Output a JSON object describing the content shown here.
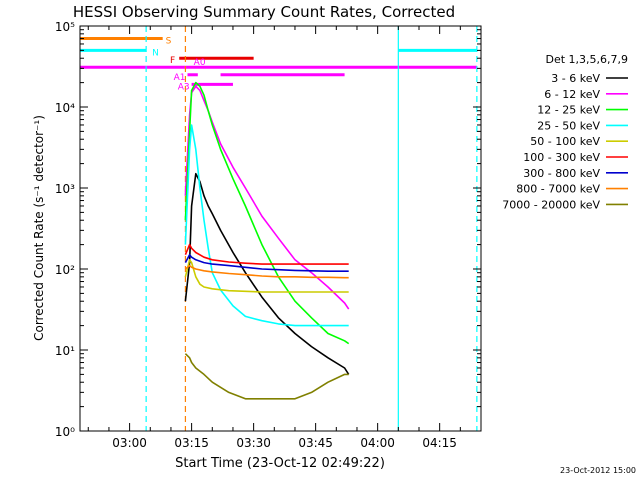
{
  "chart_data": {
    "type": "line",
    "title": "HESSI Observing Summary Count Rates, Corrected",
    "xlabel": "Start Time (23-Oct-12 02:49:22)",
    "ylabel": "Corrected Count Rate (s⁻¹ detector⁻¹)",
    "date_stamp": "23-Oct-2012 15:00",
    "y_scale": "log",
    "ylim": [
      1,
      100000
    ],
    "y_ticks": [
      1,
      10,
      100,
      1000,
      10000,
      100000
    ],
    "y_tick_labels": [
      "10⁰",
      "10¹",
      "10²",
      "10³",
      "10⁴",
      "10⁵"
    ],
    "x_unit": "minutes since 03:00 UT",
    "xlim": [
      -12.0,
      85.0
    ],
    "x_ticks": [
      0,
      15,
      30,
      45,
      60,
      75
    ],
    "x_tick_labels": [
      "03:00",
      "03:15",
      "03:30",
      "03:45",
      "04:00",
      "04:15"
    ],
    "legend_title": "Det 1,3,5,6,7,9",
    "legend_position": "right",
    "colors": {
      "flag_magenta": "#ff00ff",
      "flag_orange": "#ff8000",
      "flag_red": "#e80000",
      "flag_cyan": "#00ffff",
      "flag_marker": "#ff8000"
    },
    "flags": {
      "S": {
        "label": "S",
        "segments": [
          [
            -12.0,
            8.0
          ]
        ],
        "y": 70000
      },
      "N": {
        "label": "N",
        "segments": [
          [
            -12.0,
            4.0
          ],
          [
            65.0,
            84.0
          ]
        ],
        "y": 50000
      },
      "F": {
        "label": "F",
        "segments": [
          [
            12.0,
            30.0
          ]
        ],
        "y": 40000
      },
      "A0": {
        "label": "A0",
        "segments": [
          [
            -12.0,
            84.0
          ]
        ],
        "y": 31000
      },
      "A1": {
        "label": "A1",
        "segments": [
          [
            14.0,
            16.5
          ],
          [
            22.0,
            52.0
          ]
        ],
        "y": 25000
      },
      "A3": {
        "label": "A3",
        "segments": [
          [
            15.0,
            25.0
          ]
        ],
        "y": 19000
      }
    },
    "vlines": {
      "cyan_dashed": [
        4.0,
        84.0
      ],
      "cyan_solid": [
        65.0
      ],
      "orange_dashed": [
        13.5
      ]
    },
    "series": [
      {
        "name": "3 - 6 keV",
        "color": "#000000",
        "x": [
          13.5,
          14.5,
          15.0,
          16.0,
          17.0,
          18.0,
          19.0,
          20.0,
          22.0,
          25.0,
          28.0,
          32.0,
          36.0,
          40.0,
          44.0,
          48.0,
          52.0,
          53.0
        ],
        "y": [
          40,
          120,
          600,
          1500,
          1200,
          800,
          600,
          480,
          300,
          160,
          90,
          45,
          25,
          16,
          11,
          8,
          6,
          5
        ]
      },
      {
        "name": "6 - 12 keV",
        "color": "#ff00ff",
        "x": [
          13.5,
          14.5,
          15.0,
          16.0,
          17.0,
          18.0,
          19.0,
          20.0,
          22.0,
          25.0,
          28.0,
          32.0,
          36.0,
          40.0,
          44.0,
          48.0,
          52.0,
          53.0
        ],
        "y": [
          800,
          8000,
          15000,
          18000,
          16000,
          12000,
          9000,
          6500,
          3500,
          1800,
          1000,
          450,
          240,
          130,
          90,
          60,
          38,
          32
        ]
      },
      {
        "name": "12 - 25 keV",
        "color": "#00ff00",
        "x": [
          13.5,
          14.5,
          15.0,
          16.0,
          17.0,
          18.0,
          19.0,
          20.0,
          22.0,
          25.0,
          28.0,
          32.0,
          36.0,
          40.0,
          44.0,
          48.0,
          52.0,
          53.0
        ],
        "y": [
          400,
          5000,
          16000,
          20000,
          18000,
          14000,
          9000,
          6000,
          3000,
          1300,
          600,
          200,
          80,
          40,
          25,
          16,
          13,
          12
        ]
      },
      {
        "name": "25 - 50 keV",
        "color": "#00ffff",
        "x": [
          13.5,
          14.5,
          15.0,
          16.0,
          17.0,
          18.0,
          19.0,
          20.0,
          22.0,
          25.0,
          28.0,
          32.0,
          36.0,
          40.0,
          44.0,
          48.0,
          52.0,
          53.0
        ],
        "y": [
          200,
          3000,
          6000,
          3000,
          1000,
          400,
          180,
          90,
          55,
          35,
          26,
          23,
          21,
          20,
          20,
          20,
          20,
          20
        ]
      },
      {
        "name": "50 - 100 keV",
        "color": "#cccc00",
        "x": [
          13.5,
          14.5,
          15.0,
          16.0,
          17.0,
          18.0,
          20.0,
          24.0,
          28.0,
          32.0,
          36.0,
          40.0,
          44.0,
          48.0,
          52.0,
          53.0
        ],
        "y": [
          80,
          130,
          120,
          80,
          65,
          60,
          57,
          54,
          53,
          52,
          52,
          52,
          52,
          52,
          52,
          52
        ]
      },
      {
        "name": "100 - 300 keV",
        "color": "#ff0000",
        "x": [
          13.5,
          14.5,
          15.0,
          16.0,
          18.0,
          20.0,
          24.0,
          28.0,
          32.0,
          36.0,
          40.0,
          44.0,
          48.0,
          52.0,
          53.0
        ],
        "y": [
          150,
          200,
          180,
          160,
          140,
          130,
          122,
          118,
          115,
          115,
          115,
          115,
          115,
          115,
          115
        ]
      },
      {
        "name": "300 - 800 keV",
        "color": "#0000cd",
        "x": [
          13.5,
          14.5,
          15.0,
          16.0,
          18.0,
          20.0,
          24.0,
          28.0,
          32.0,
          36.0,
          40.0,
          44.0,
          48.0,
          52.0,
          53.0
        ],
        "y": [
          120,
          150,
          140,
          130,
          120,
          115,
          110,
          105,
          100,
          98,
          96,
          95,
          94,
          94,
          94
        ]
      },
      {
        "name": "800 - 7000 keV",
        "color": "#ff8000",
        "x": [
          13.5,
          14.5,
          15.0,
          16.0,
          18.0,
          20.0,
          24.0,
          28.0,
          32.0,
          36.0,
          40.0,
          44.0,
          48.0,
          52.0,
          53.0
        ],
        "y": [
          100,
          110,
          105,
          100,
          95,
          92,
          88,
          85,
          82,
          80,
          80,
          79,
          79,
          78,
          78
        ]
      },
      {
        "name": "7000 - 20000 keV",
        "color": "#808000",
        "x": [
          13.5,
          14.5,
          15.0,
          16.0,
          18.0,
          20.0,
          24.0,
          28.0,
          32.0,
          36.0,
          40.0,
          44.0,
          48.0,
          52.0,
          53.0
        ],
        "y": [
          9,
          8,
          7,
          6,
          5,
          4,
          3,
          2.5,
          2.5,
          2.5,
          2.5,
          3,
          4,
          5,
          5
        ]
      }
    ]
  }
}
